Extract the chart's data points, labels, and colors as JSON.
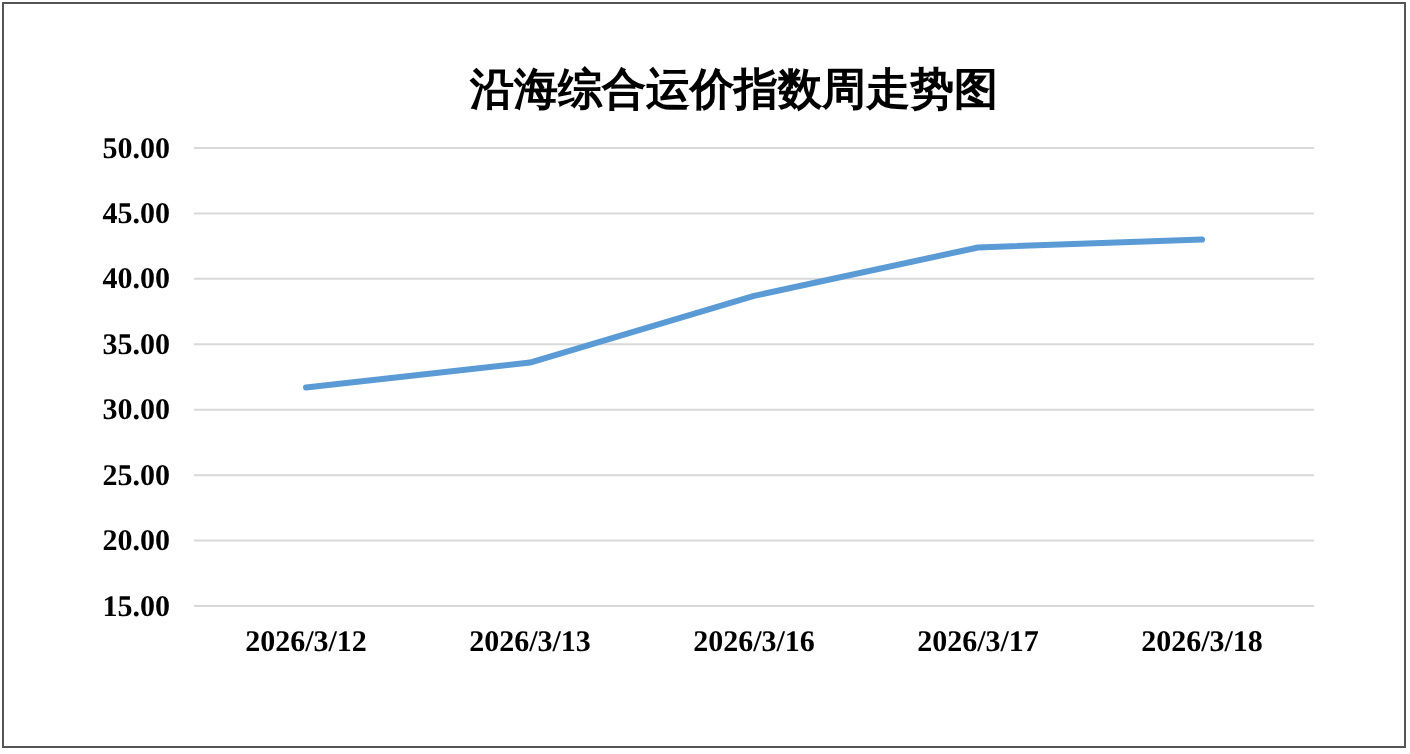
{
  "chart_data": {
    "type": "line",
    "title": "沿海综合运价指数周走势图",
    "categories": [
      "2026/3/12",
      "2026/3/13",
      "2026/3/16",
      "2026/3/17",
      "2026/3/18"
    ],
    "series": [
      {
        "color": "#5b9bd5",
        "values": [
          31.7,
          33.6,
          38.7,
          42.4,
          43.0
        ]
      }
    ],
    "ylim": [
      15,
      50
    ],
    "yticks": [
      {
        "value": 15,
        "label": "15.00"
      },
      {
        "value": 20,
        "label": "20.00"
      },
      {
        "value": 25,
        "label": "25.00"
      },
      {
        "value": 30,
        "label": "30.00"
      },
      {
        "value": 35,
        "label": "35.00"
      },
      {
        "value": 40,
        "label": "40.00"
      },
      {
        "value": 45,
        "label": "45.00"
      },
      {
        "value": 50,
        "label": "50.00"
      }
    ],
    "grid": "y",
    "marker": "none",
    "line_style": "solid"
  }
}
